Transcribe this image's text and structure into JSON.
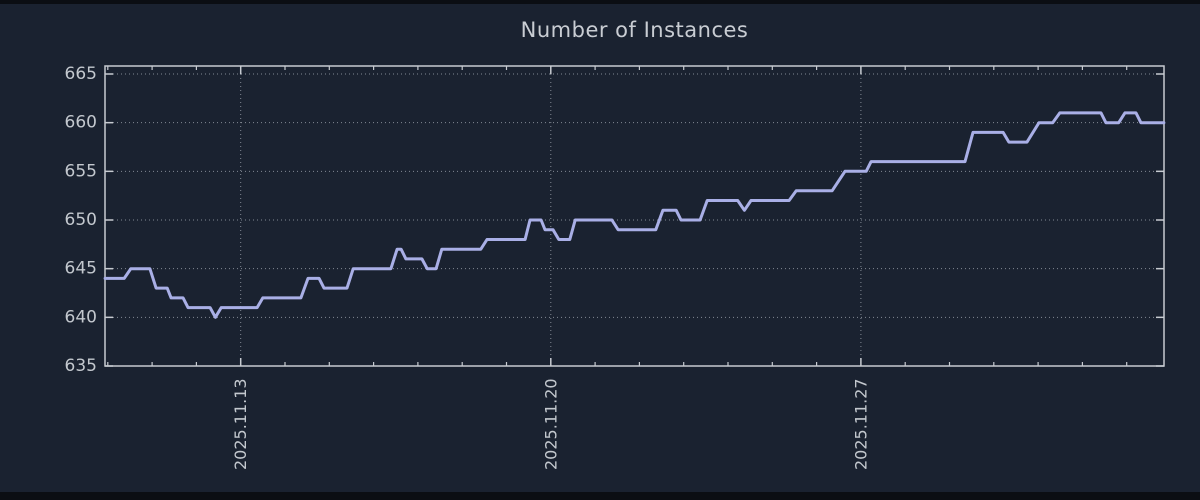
{
  "figure": {
    "title": "Number of Instances"
  },
  "colors": {
    "outer_background": "#0b0e13",
    "figure_background": "#1a2230",
    "line": "#a9afe6",
    "grid": "#a7adb6",
    "axis": "#c7cbd1",
    "tick_label": "#c3c8ce",
    "title": "#c9cdd3"
  },
  "chart_data": {
    "type": "line",
    "title": "Number of Instances",
    "xlabel": "",
    "ylabel": "",
    "legend": null,
    "x_axis": {
      "tick_labels": [
        "2025.11.13",
        "2025.11.20",
        "2025.11.27"
      ],
      "tick_days": [
        0,
        7,
        14
      ],
      "minor_tick_interval_days": 1,
      "minor_tick_day_range": [
        -3,
        20
      ],
      "range_days": [
        -3.06,
        20.84
      ],
      "gridlines": "dotted vertical at weekly major ticks"
    },
    "y_axis": {
      "ticks": [
        635,
        640,
        645,
        650,
        655,
        660,
        665
      ],
      "gridline_values": [
        640,
        645,
        650,
        655,
        660,
        665
      ],
      "range": [
        635,
        665.8
      ],
      "gridlines": "dotted horizontal at major ticks"
    },
    "series": [
      {
        "name": "Number of Instances",
        "style": "step-like line, days relative to 2025.11.13",
        "segments_day_value": [
          [
            -3.06,
            -2.63,
            644
          ],
          [
            -2.48,
            -2.05,
            645
          ],
          [
            -1.91,
            -1.66,
            643
          ],
          [
            -1.57,
            -1.3,
            642
          ],
          [
            -1.19,
            -0.69,
            641
          ],
          [
            -0.57,
            -0.57,
            640
          ],
          [
            -0.44,
            0.37,
            641
          ],
          [
            0.5,
            1.36,
            642
          ],
          [
            1.52,
            1.77,
            644
          ],
          [
            1.88,
            2.4,
            643
          ],
          [
            2.54,
            3.39,
            645
          ],
          [
            3.53,
            3.62,
            647
          ],
          [
            3.73,
            4.09,
            646
          ],
          [
            4.21,
            4.41,
            645
          ],
          [
            4.54,
            5.42,
            647
          ],
          [
            5.56,
            6.42,
            648
          ],
          [
            6.53,
            6.78,
            650
          ],
          [
            6.87,
            7.05,
            649
          ],
          [
            7.18,
            7.43,
            648
          ],
          [
            7.55,
            8.38,
            650
          ],
          [
            8.52,
            9.37,
            649
          ],
          [
            9.53,
            9.83,
            651
          ],
          [
            9.94,
            10.37,
            650
          ],
          [
            10.53,
            11.22,
            652
          ],
          [
            11.37,
            11.37,
            651
          ],
          [
            11.52,
            12.38,
            652
          ],
          [
            12.54,
            13.35,
            653
          ],
          [
            13.64,
            14.12,
            655
          ],
          [
            14.23,
            16.35,
            656
          ],
          [
            16.53,
            17.21,
            659
          ],
          [
            17.34,
            17.75,
            658
          ],
          [
            18.02,
            18.33,
            660
          ],
          [
            18.49,
            19.42,
            661
          ],
          [
            19.53,
            19.82,
            660
          ],
          [
            19.96,
            20.21,
            661
          ],
          [
            20.32,
            20.84,
            660
          ]
        ]
      }
    ]
  }
}
